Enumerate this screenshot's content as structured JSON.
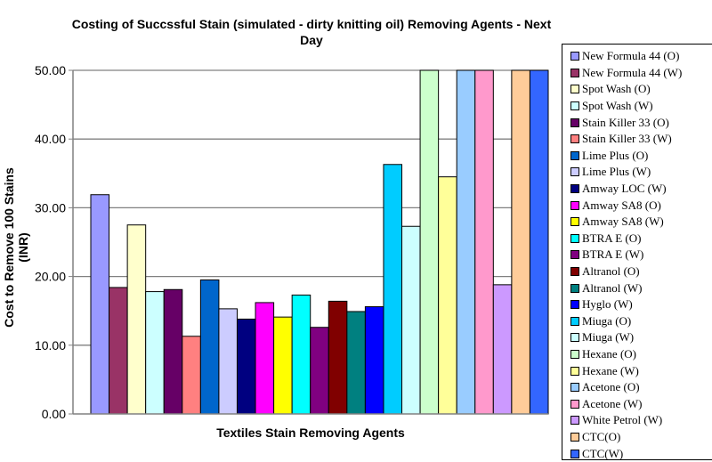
{
  "chart_data": {
    "type": "bar",
    "title": "Costing of Succssful Stain (simulated - dirty knitting oil) Removing Agents - Next Day",
    "xlabel": "Textiles Stain Removing Agents",
    "ylabel": "Cost to Remove 100 Stains (INR)",
    "ylim": [
      0,
      50
    ],
    "yticks": [
      "0.00",
      "10.00",
      "20.00",
      "30.00",
      "40.00",
      "50.00"
    ],
    "grid": true,
    "legend_position": "right",
    "series": [
      {
        "name": "New Formula 44 (O)",
        "value": 31.9,
        "color": "#9999FF"
      },
      {
        "name": "New Formula 44 (W)",
        "value": 18.4,
        "color": "#993366"
      },
      {
        "name": "Spot Wash (O)",
        "value": 27.5,
        "color": "#FFFFCC"
      },
      {
        "name": "Spot Wash (W)",
        "value": 17.8,
        "color": "#CCFFFF"
      },
      {
        "name": "Stain Killer 33 (O)",
        "value": 18.1,
        "color": "#660066"
      },
      {
        "name": "Stain Killer 33 (W)",
        "value": 11.3,
        "color": "#FF8080"
      },
      {
        "name": "Lime Plus (O)",
        "value": 19.5,
        "color": "#0066CC"
      },
      {
        "name": "Lime Plus (W)",
        "value": 15.3,
        "color": "#CCCCFF"
      },
      {
        "name": "Amway LOC (W)",
        "value": 13.8,
        "color": "#000080"
      },
      {
        "name": "Amway SA8 (O)",
        "value": 16.2,
        "color": "#FF00FF"
      },
      {
        "name": "Amway SA8 (W)",
        "value": 14.1,
        "color": "#FFFF00"
      },
      {
        "name": "BTRA E (O)",
        "value": 17.3,
        "color": "#00FFFF"
      },
      {
        "name": "BTRA E (W)",
        "value": 12.6,
        "color": "#800080"
      },
      {
        "name": "Altranol (O)",
        "value": 16.4,
        "color": "#800000"
      },
      {
        "name": "Altranol (W)",
        "value": 14.9,
        "color": "#008080"
      },
      {
        "name": "Hyglo (W)",
        "value": 15.6,
        "color": "#0000FF"
      },
      {
        "name": "Miuga (O)",
        "value": 36.3,
        "color": "#00CCFF"
      },
      {
        "name": "Miuga (W)",
        "value": 27.3,
        "color": "#CCFFFF"
      },
      {
        "name": "Hexane (O)",
        "value": 50,
        "color": "#CCFFCC"
      },
      {
        "name": "Hexane (W)",
        "value": 34.5,
        "color": "#FFFF99"
      },
      {
        "name": "Acetone (O)",
        "value": 50,
        "color": "#99CCFF"
      },
      {
        "name": "Acetone (W)",
        "value": 50,
        "color": "#FF99CC"
      },
      {
        "name": "White Petrol (W)",
        "value": 18.8,
        "color": "#CC99FF"
      },
      {
        "name": "CTC(O)",
        "value": 50,
        "color": "#FFCC99"
      },
      {
        "name": "CTC(W)",
        "value": 50,
        "color": "#3366FF"
      }
    ]
  }
}
